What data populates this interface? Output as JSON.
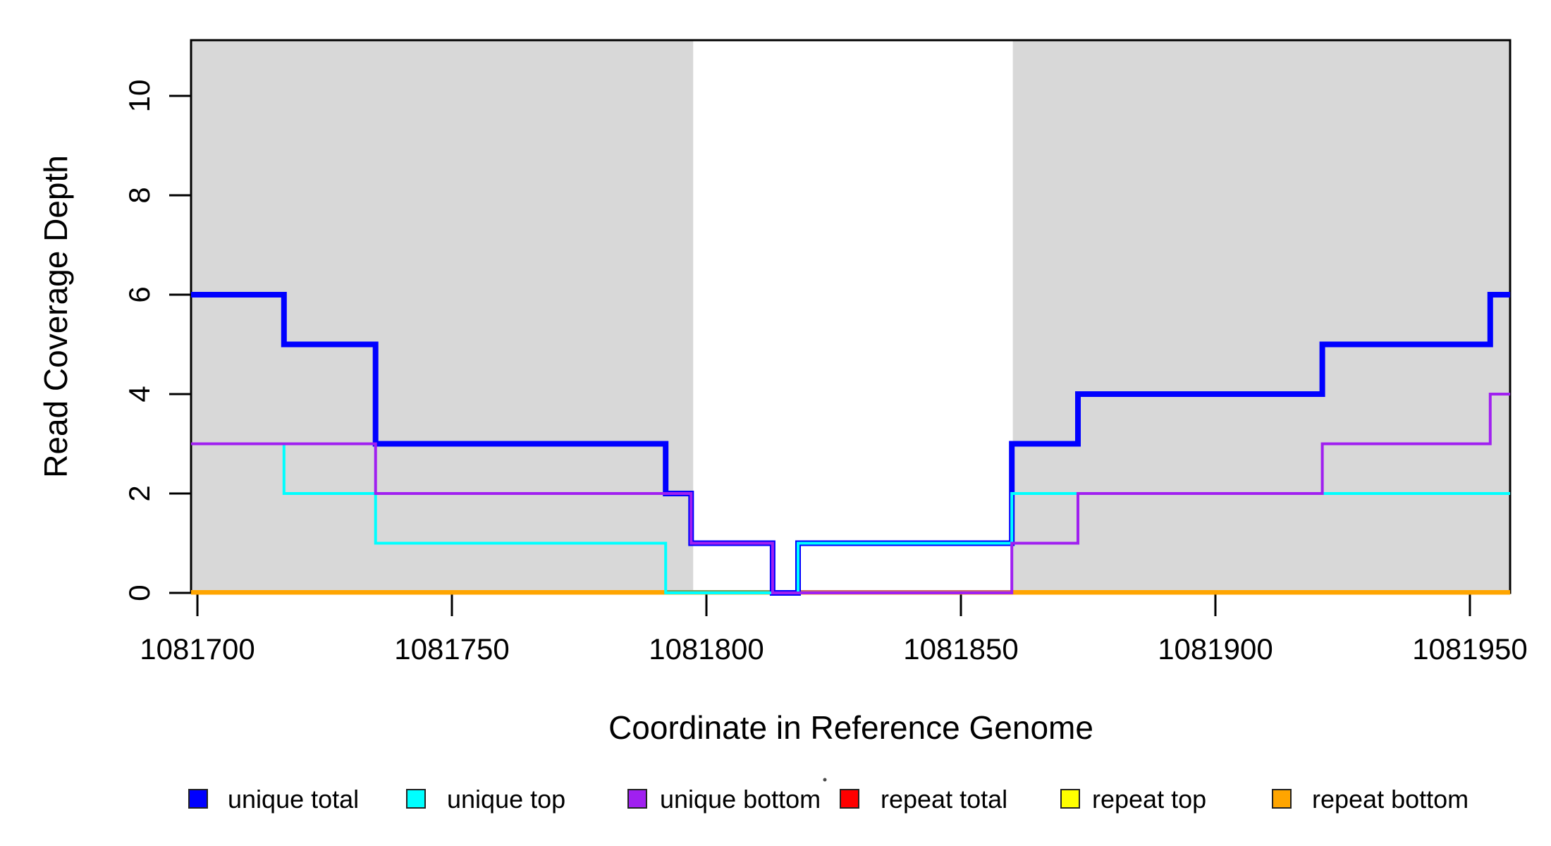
{
  "chart_data": {
    "type": "line",
    "subtype": "step-after-coverage-plot",
    "title": "",
    "xlabel": "Coordinate in Reference Genome",
    "ylabel": "Read Coverage Depth",
    "xlim": [
      1081698.75,
      1081957.9
    ],
    "ylim": [
      0,
      11.12
    ],
    "x_ticks": [
      1081700,
      1081750,
      1081800,
      1081850,
      1081900,
      1081950
    ],
    "x_tick_labels": [
      "1081700",
      "1081750",
      "1081800",
      "1081850",
      "1081900",
      "1081950"
    ],
    "y_ticks": [
      0,
      2,
      4,
      6,
      8,
      10
    ],
    "y_tick_labels": [
      "0",
      "2",
      "4",
      "6",
      "8",
      "10"
    ],
    "grid": false,
    "legend_position": "bottom",
    "step": "after",
    "series": [
      {
        "name": "unique total",
        "color": "#0000FF",
        "line_width": 8,
        "points": [
          [
            1081698.75,
            6
          ],
          [
            1081717,
            5
          ],
          [
            1081735,
            3
          ],
          [
            1081792,
            2
          ],
          [
            1081797,
            1
          ],
          [
            1081813,
            0
          ],
          [
            1081818,
            1
          ],
          [
            1081860,
            3
          ],
          [
            1081873,
            4
          ],
          [
            1081921,
            5
          ],
          [
            1081954,
            6
          ],
          [
            1081957.9,
            6
          ]
        ]
      },
      {
        "name": "unique top",
        "color": "#00FFFF",
        "line_width": 4,
        "points": [
          [
            1081698.75,
            3
          ],
          [
            1081717,
            2
          ],
          [
            1081735,
            1
          ],
          [
            1081792,
            0
          ],
          [
            1081818,
            1
          ],
          [
            1081860,
            2
          ],
          [
            1081957.9,
            2
          ]
        ]
      },
      {
        "name": "unique bottom",
        "color": "#A020F0",
        "line_width": 4,
        "points": [
          [
            1081698.75,
            3
          ],
          [
            1081735,
            2
          ],
          [
            1081797,
            1
          ],
          [
            1081813,
            0
          ],
          [
            1081860,
            1
          ],
          [
            1081873,
            2
          ],
          [
            1081921,
            3
          ],
          [
            1081954,
            4
          ],
          [
            1081957.9,
            4
          ]
        ]
      },
      {
        "name": "repeat total",
        "color": "#FF0000",
        "line_width": 4,
        "points": [
          [
            1081698.75,
            0
          ],
          [
            1081957.9,
            0
          ]
        ]
      },
      {
        "name": "repeat top",
        "color": "#FFFF00",
        "line_width": 4,
        "points": [
          [
            1081698.75,
            0
          ],
          [
            1081957.9,
            0
          ]
        ]
      },
      {
        "name": "repeat bottom",
        "color": "#FFA500",
        "line_width": 5,
        "points": [
          [
            1081698.75,
            0
          ],
          [
            1081957.9,
            0
          ]
        ]
      }
    ],
    "shaded_regions": [
      {
        "x0": 1081698.75,
        "x1": 1081797.4,
        "color": "#D8D8D8"
      },
      {
        "x0": 1081860.2,
        "x1": 1081957.9,
        "color": "#D8D8D8"
      }
    ],
    "baseline_overlap_segments": [
      {
        "x0": 1081698.75,
        "x1": 1081792,
        "color": "#FFA500"
      },
      {
        "x0": 1081792,
        "x1": 1081813,
        "color": "#7E9E5A"
      },
      {
        "x0": 1081818,
        "x1": 1081860,
        "color": "#C96A6A"
      },
      {
        "x0": 1081860,
        "x1": 1081957.9,
        "color": "#FFA500"
      }
    ],
    "legend": [
      {
        "label": "unique total",
        "color": "#0000FF"
      },
      {
        "label": "unique top",
        "color": "#00FFFF"
      },
      {
        "label": "unique bottom",
        "color": "#A020F0"
      },
      {
        "label": "repeat total",
        "color": "#FF0000"
      },
      {
        "label": "repeat top",
        "color": "#FFFF00"
      },
      {
        "label": "repeat bottom",
        "color": "#FFA500"
      }
    ]
  }
}
